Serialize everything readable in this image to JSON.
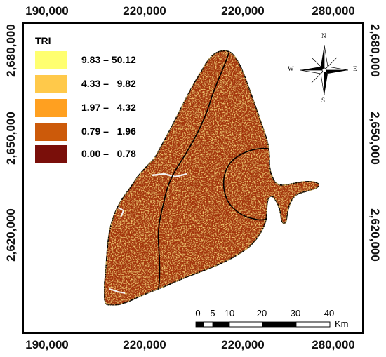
{
  "axes": {
    "top_ticks": [
      "190,000",
      "220,000",
      "220,000",
      "280,000"
    ],
    "bottom_ticks": [
      "190,000",
      "220,000",
      "220,000",
      "280,000"
    ],
    "left_ticks": [
      "2,680,000",
      "2,650,000",
      "2,620,000"
    ],
    "right_ticks": [
      "2,680,000",
      "2,650,000",
      "2,620,000"
    ]
  },
  "legend": {
    "title": "TRI",
    "classes": [
      {
        "label": "9.83 – 50.12",
        "color": "#ffff70"
      },
      {
        "label": "4.33 –   9.82",
        "color": "#ffc94a"
      },
      {
        "label": "1.97 –   4.32",
        "color": "#ffa020"
      },
      {
        "label": "0.79 –   1.96",
        "color": "#cc5a0a"
      },
      {
        "label": "0.00 –   0.78",
        "color": "#7a0f0a"
      }
    ]
  },
  "compass": {
    "n": "N",
    "s": "S",
    "e": "E",
    "w": "W"
  },
  "scale_bar": {
    "labels": [
      "0",
      "5",
      "10",
      "20",
      "30",
      "40"
    ],
    "unit": "Km"
  },
  "colors": {
    "region_fill": "#a4360e",
    "boundary": "#000000"
  }
}
